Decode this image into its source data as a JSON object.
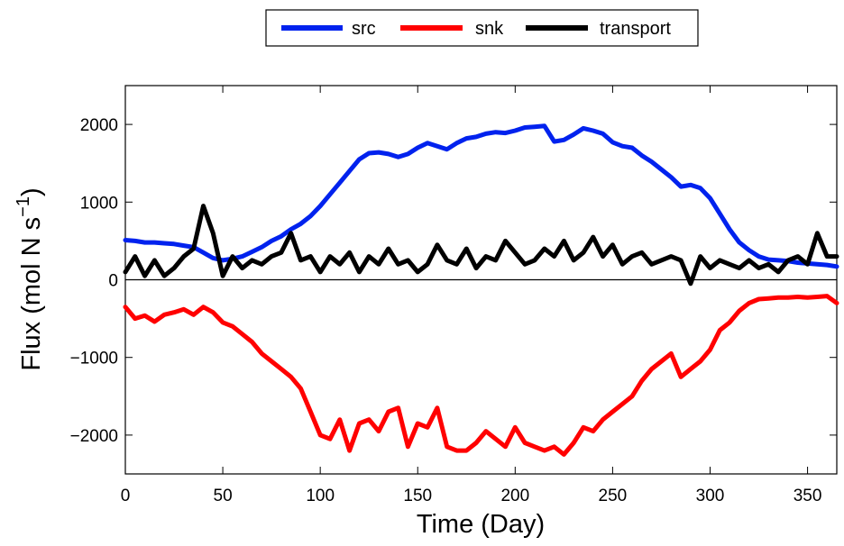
{
  "chart_data": {
    "type": "line",
    "xlabel": "Time (Day)",
    "ylabel_main": "Flux (mol N s",
    "ylabel_sup": "−1",
    "ylabel_close": ")",
    "xlim": [
      0,
      365
    ],
    "ylim": [
      -2500,
      2500
    ],
    "xticks": [
      0,
      50,
      100,
      150,
      200,
      250,
      300,
      350
    ],
    "xtick_labels": [
      "0",
      "50",
      "100",
      "150",
      "200",
      "250",
      "300",
      "350"
    ],
    "yticks": [
      2000,
      1000,
      0,
      -1000,
      -2000
    ],
    "ytick_labels": [
      "2000",
      "1000",
      "0",
      "−1000",
      "−2000"
    ],
    "zero_line": true,
    "grid": false,
    "legend_position": "top-center",
    "x": [
      0,
      5,
      10,
      15,
      20,
      25,
      30,
      35,
      40,
      45,
      50,
      55,
      60,
      65,
      70,
      75,
      80,
      85,
      90,
      95,
      100,
      105,
      110,
      115,
      120,
      125,
      130,
      135,
      140,
      145,
      150,
      155,
      160,
      165,
      170,
      175,
      180,
      185,
      190,
      195,
      200,
      205,
      210,
      215,
      220,
      225,
      230,
      235,
      240,
      245,
      250,
      255,
      260,
      265,
      270,
      275,
      280,
      285,
      290,
      295,
      300,
      305,
      310,
      315,
      320,
      325,
      330,
      335,
      340,
      345,
      350,
      355,
      360,
      365
    ],
    "series": [
      {
        "name": "src",
        "color": "#0022ee",
        "values": [
          510,
          500,
          480,
          480,
          470,
          460,
          440,
          420,
          350,
          280,
          250,
          270,
          300,
          360,
          420,
          500,
          560,
          650,
          720,
          820,
          950,
          1100,
          1250,
          1400,
          1550,
          1630,
          1640,
          1620,
          1580,
          1620,
          1700,
          1760,
          1720,
          1680,
          1760,
          1820,
          1840,
          1880,
          1900,
          1890,
          1920,
          1960,
          1970,
          1980,
          1780,
          1800,
          1870,
          1950,
          1920,
          1880,
          1770,
          1720,
          1700,
          1600,
          1520,
          1420,
          1320,
          1200,
          1220,
          1180,
          1050,
          850,
          650,
          480,
          380,
          300,
          260,
          250,
          240,
          220,
          210,
          200,
          190,
          170
        ],
        "values_note": ""
      },
      {
        "name": "snk",
        "color": "#ff0000",
        "values": [
          -350,
          -500,
          -460,
          -540,
          -450,
          -420,
          -380,
          -450,
          -350,
          -420,
          -550,
          -600,
          -700,
          -800,
          -950,
          -1050,
          -1150,
          -1250,
          -1400,
          -1700,
          -2000,
          -2050,
          -1800,
          -2200,
          -1850,
          -1800,
          -1950,
          -1700,
          -1650,
          -2150,
          -1850,
          -1900,
          -1650,
          -2150,
          -2200,
          -2200,
          -2100,
          -1950,
          -2050,
          -2150,
          -1900,
          -2100,
          -2150,
          -2200,
          -2150,
          -2250,
          -2100,
          -1900,
          -1950,
          -1800,
          -1700,
          -1600,
          -1500,
          -1300,
          -1150,
          -1050,
          -950,
          -1250,
          -1150,
          -1050,
          -900,
          -650,
          -550,
          -400,
          -300,
          -250,
          -240,
          -230,
          -230,
          -220,
          -230,
          -220,
          -210,
          -300
        ]
      },
      {
        "name": "transport",
        "color": "#000000",
        "values": [
          100,
          300,
          50,
          250,
          50,
          150,
          300,
          400,
          950,
          600,
          50,
          300,
          150,
          250,
          200,
          300,
          350,
          600,
          250,
          300,
          100,
          300,
          200,
          350,
          100,
          300,
          200,
          400,
          200,
          250,
          100,
          200,
          450,
          250,
          200,
          400,
          150,
          300,
          250,
          500,
          350,
          200,
          250,
          400,
          300,
          500,
          250,
          350,
          550,
          300,
          450,
          200,
          300,
          350,
          200,
          250,
          300,
          250,
          -50,
          300,
          150,
          250,
          200,
          150,
          250,
          150,
          200,
          100,
          250,
          300,
          200,
          600,
          300,
          300
        ]
      }
    ]
  }
}
